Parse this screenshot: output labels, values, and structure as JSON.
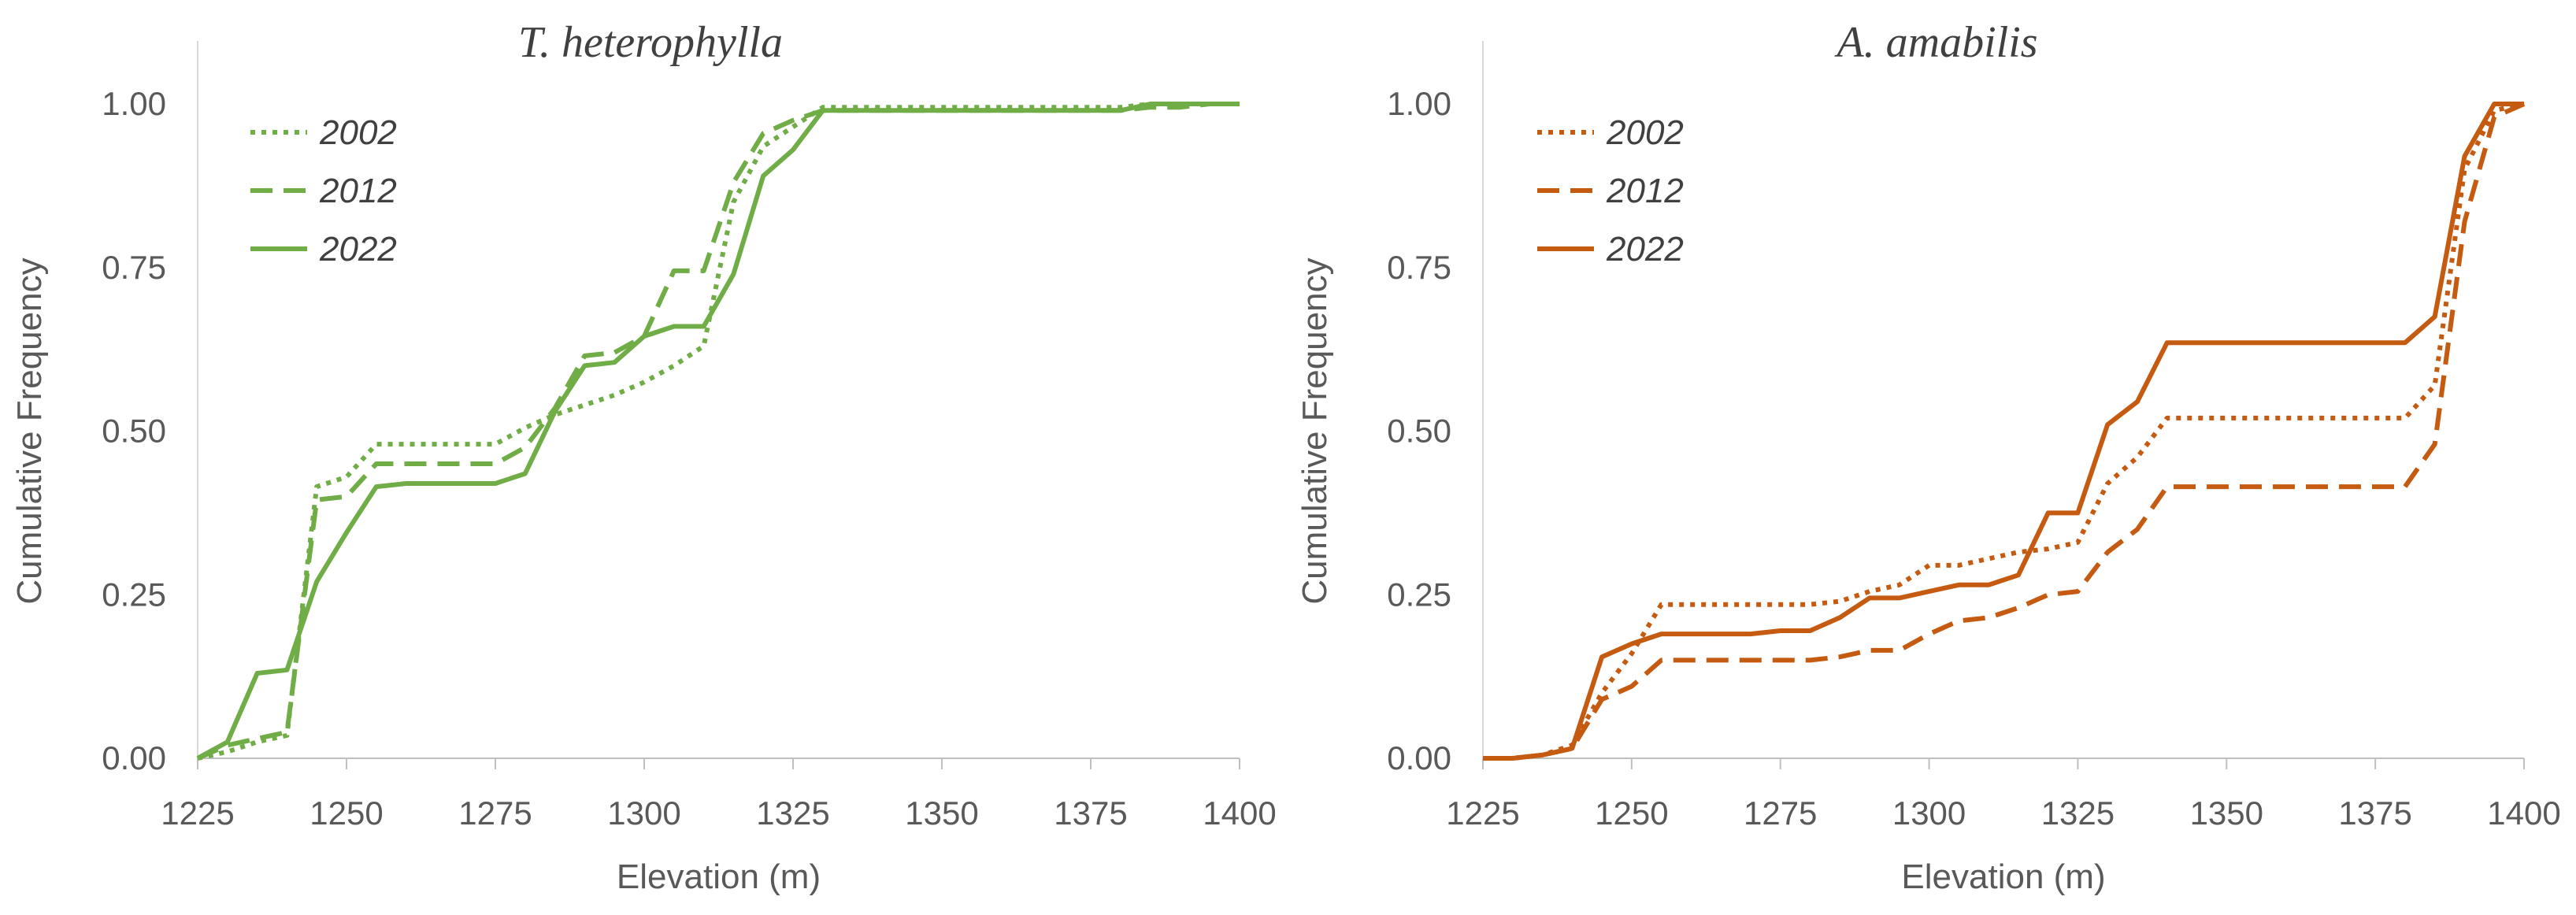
{
  "chart_data": [
    {
      "type": "line",
      "title": "T. heterophylla",
      "xlabel": "Elevation (m)",
      "ylabel": "Cumulative Frequency",
      "xlim": [
        1225,
        1400
      ],
      "ylim": [
        0,
        1
      ],
      "x_ticks": [
        "1225",
        "1250",
        "1275",
        "1300",
        "1325",
        "1350",
        "1375",
        "1400"
      ],
      "y_ticks": [
        "0.00",
        "0.25",
        "0.50",
        "0.75",
        "1.00"
      ],
      "color": "#70ad47",
      "legend": "top-left",
      "grid": false,
      "series": [
        {
          "name": "2002",
          "style": "dotted",
          "points": [
            [
              1225,
              0.0
            ],
            [
              1230,
              0.01
            ],
            [
              1235,
              0.025
            ],
            [
              1240,
              0.035
            ],
            [
              1245,
              0.415
            ],
            [
              1250,
              0.43
            ],
            [
              1255,
              0.48
            ],
            [
              1260,
              0.48
            ],
            [
              1275,
              0.48
            ],
            [
              1280,
              0.505
            ],
            [
              1285,
              0.525
            ],
            [
              1290,
              0.54
            ],
            [
              1295,
              0.555
            ],
            [
              1300,
              0.575
            ],
            [
              1305,
              0.6
            ],
            [
              1310,
              0.63
            ],
            [
              1315,
              0.85
            ],
            [
              1320,
              0.935
            ],
            [
              1325,
              0.965
            ],
            [
              1330,
              0.995
            ],
            [
              1380,
              0.995
            ],
            [
              1385,
              1.0
            ],
            [
              1400,
              1.0
            ]
          ]
        },
        {
          "name": "2012",
          "style": "dashed",
          "points": [
            [
              1225,
              0.0
            ],
            [
              1230,
              0.02
            ],
            [
              1235,
              0.03
            ],
            [
              1240,
              0.04
            ],
            [
              1245,
              0.395
            ],
            [
              1250,
              0.4
            ],
            [
              1255,
              0.45
            ],
            [
              1260,
              0.45
            ],
            [
              1275,
              0.45
            ],
            [
              1280,
              0.475
            ],
            [
              1285,
              0.535
            ],
            [
              1290,
              0.615
            ],
            [
              1295,
              0.62
            ],
            [
              1300,
              0.645
            ],
            [
              1305,
              0.745
            ],
            [
              1310,
              0.745
            ],
            [
              1315,
              0.88
            ],
            [
              1320,
              0.955
            ],
            [
              1325,
              0.975
            ],
            [
              1330,
              0.99
            ],
            [
              1380,
              0.99
            ],
            [
              1385,
              0.995
            ],
            [
              1390,
              0.995
            ],
            [
              1395,
              1.0
            ],
            [
              1400,
              1.0
            ]
          ]
        },
        {
          "name": "2022",
          "style": "solid",
          "points": [
            [
              1225,
              0.0
            ],
            [
              1230,
              0.025
            ],
            [
              1235,
              0.13
            ],
            [
              1240,
              0.135
            ],
            [
              1245,
              0.27
            ],
            [
              1250,
              0.345
            ],
            [
              1255,
              0.415
            ],
            [
              1260,
              0.42
            ],
            [
              1275,
              0.42
            ],
            [
              1280,
              0.435
            ],
            [
              1285,
              0.53
            ],
            [
              1290,
              0.6
            ],
            [
              1295,
              0.605
            ],
            [
              1300,
              0.645
            ],
            [
              1305,
              0.66
            ],
            [
              1310,
              0.66
            ],
            [
              1315,
              0.74
            ],
            [
              1320,
              0.89
            ],
            [
              1325,
              0.93
            ],
            [
              1330,
              0.99
            ],
            [
              1380,
              0.99
            ],
            [
              1385,
              1.0
            ],
            [
              1400,
              1.0
            ]
          ]
        }
      ]
    },
    {
      "type": "line",
      "title": "A. amabilis",
      "xlabel": "Elevation (m)",
      "ylabel": "Cumulative Frequency",
      "xlim": [
        1225,
        1400
      ],
      "ylim": [
        0,
        1
      ],
      "x_ticks": [
        "1225",
        "1250",
        "1275",
        "1300",
        "1325",
        "1350",
        "1375",
        "1400"
      ],
      "y_ticks": [
        "0.00",
        "0.25",
        "0.50",
        "0.75",
        "1.00"
      ],
      "color": "#c55a11",
      "legend": "top-left",
      "grid": false,
      "series": [
        {
          "name": "2002",
          "style": "dotted",
          "points": [
            [
              1225,
              0.0
            ],
            [
              1230,
              0.0
            ],
            [
              1235,
              0.005
            ],
            [
              1240,
              0.02
            ],
            [
              1245,
              0.1
            ],
            [
              1250,
              0.16
            ],
            [
              1255,
              0.235
            ],
            [
              1260,
              0.235
            ],
            [
              1280,
              0.235
            ],
            [
              1285,
              0.24
            ],
            [
              1290,
              0.255
            ],
            [
              1295,
              0.265
            ],
            [
              1300,
              0.295
            ],
            [
              1305,
              0.295
            ],
            [
              1310,
              0.305
            ],
            [
              1315,
              0.315
            ],
            [
              1320,
              0.32
            ],
            [
              1325,
              0.33
            ],
            [
              1330,
              0.42
            ],
            [
              1335,
              0.46
            ],
            [
              1340,
              0.52
            ],
            [
              1345,
              0.52
            ],
            [
              1380,
              0.52
            ],
            [
              1385,
              0.57
            ],
            [
              1390,
              0.9
            ],
            [
              1395,
              0.99
            ],
            [
              1400,
              1.0
            ]
          ]
        },
        {
          "name": "2012",
          "style": "dashed",
          "points": [
            [
              1225,
              0.0
            ],
            [
              1230,
              0.0
            ],
            [
              1235,
              0.005
            ],
            [
              1240,
              0.015
            ],
            [
              1245,
              0.09
            ],
            [
              1250,
              0.11
            ],
            [
              1255,
              0.15
            ],
            [
              1260,
              0.15
            ],
            [
              1280,
              0.15
            ],
            [
              1285,
              0.155
            ],
            [
              1290,
              0.165
            ],
            [
              1295,
              0.165
            ],
            [
              1300,
              0.19
            ],
            [
              1305,
              0.21
            ],
            [
              1310,
              0.215
            ],
            [
              1315,
              0.23
            ],
            [
              1320,
              0.25
            ],
            [
              1325,
              0.255
            ],
            [
              1330,
              0.315
            ],
            [
              1335,
              0.35
            ],
            [
              1340,
              0.415
            ],
            [
              1345,
              0.415
            ],
            [
              1380,
              0.415
            ],
            [
              1385,
              0.48
            ],
            [
              1390,
              0.82
            ],
            [
              1395,
              0.98
            ],
            [
              1400,
              1.0
            ]
          ]
        },
        {
          "name": "2022",
          "style": "solid",
          "points": [
            [
              1225,
              0.0
            ],
            [
              1230,
              0.0
            ],
            [
              1235,
              0.005
            ],
            [
              1240,
              0.015
            ],
            [
              1245,
              0.155
            ],
            [
              1250,
              0.175
            ],
            [
              1255,
              0.19
            ],
            [
              1260,
              0.19
            ],
            [
              1270,
              0.19
            ],
            [
              1275,
              0.195
            ],
            [
              1280,
              0.195
            ],
            [
              1285,
              0.215
            ],
            [
              1290,
              0.245
            ],
            [
              1295,
              0.245
            ],
            [
              1300,
              0.255
            ],
            [
              1305,
              0.265
            ],
            [
              1310,
              0.265
            ],
            [
              1315,
              0.28
            ],
            [
              1320,
              0.375
            ],
            [
              1325,
              0.375
            ],
            [
              1330,
              0.51
            ],
            [
              1335,
              0.545
            ],
            [
              1340,
              0.635
            ],
            [
              1345,
              0.635
            ],
            [
              1380,
              0.635
            ],
            [
              1385,
              0.675
            ],
            [
              1390,
              0.92
            ],
            [
              1395,
              1.0
            ],
            [
              1400,
              1.0
            ]
          ]
        }
      ]
    }
  ]
}
